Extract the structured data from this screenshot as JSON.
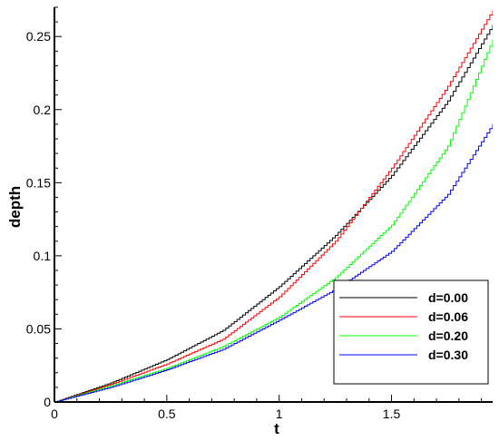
{
  "chart_data": {
    "type": "line",
    "title": "",
    "xlabel": "t",
    "ylabel": "depth",
    "xlim": [
      0,
      1.95
    ],
    "ylim": [
      0,
      0.27
    ],
    "x_ticks": [
      0,
      0.5,
      1,
      1.5
    ],
    "x_tick_labels": [
      "0",
      "0.5",
      "1",
      "1.5"
    ],
    "y_ticks": [
      0,
      0.05,
      0.1,
      0.15,
      0.2,
      0.25
    ],
    "y_tick_labels": [
      "0",
      "0.05",
      "0.1",
      "0.15",
      "0.2",
      "0.25"
    ],
    "grid": false,
    "legend_position": "bottom-right",
    "series": [
      {
        "name": "d=0.00",
        "color": "#000000",
        "x": [
          0,
          0.25,
          0.5,
          0.75,
          1.0,
          1.25,
          1.5,
          1.75,
          1.95
        ],
        "y": [
          0,
          0.013,
          0.029,
          0.049,
          0.079,
          0.114,
          0.155,
          0.206,
          0.258
        ]
      },
      {
        "name": "d=0.06",
        "color": "#ff0000",
        "x": [
          0,
          0.25,
          0.5,
          0.75,
          1.0,
          1.25,
          1.5,
          1.75,
          1.95
        ],
        "y": [
          0,
          0.012,
          0.026,
          0.043,
          0.072,
          0.11,
          0.16,
          0.216,
          0.268
        ]
      },
      {
        "name": "d=0.20",
        "color": "#00ff00",
        "x": [
          0,
          0.25,
          0.5,
          0.75,
          1.0,
          1.25,
          1.5,
          1.75,
          1.95
        ],
        "y": [
          0,
          0.011,
          0.023,
          0.038,
          0.058,
          0.085,
          0.121,
          0.175,
          0.248
        ]
      },
      {
        "name": "d=0.30",
        "color": "#0000ff",
        "x": [
          0,
          0.25,
          0.5,
          0.75,
          1.0,
          1.25,
          1.5,
          1.75,
          1.95
        ],
        "y": [
          0,
          0.01,
          0.022,
          0.036,
          0.056,
          0.077,
          0.103,
          0.142,
          0.19
        ]
      }
    ]
  }
}
